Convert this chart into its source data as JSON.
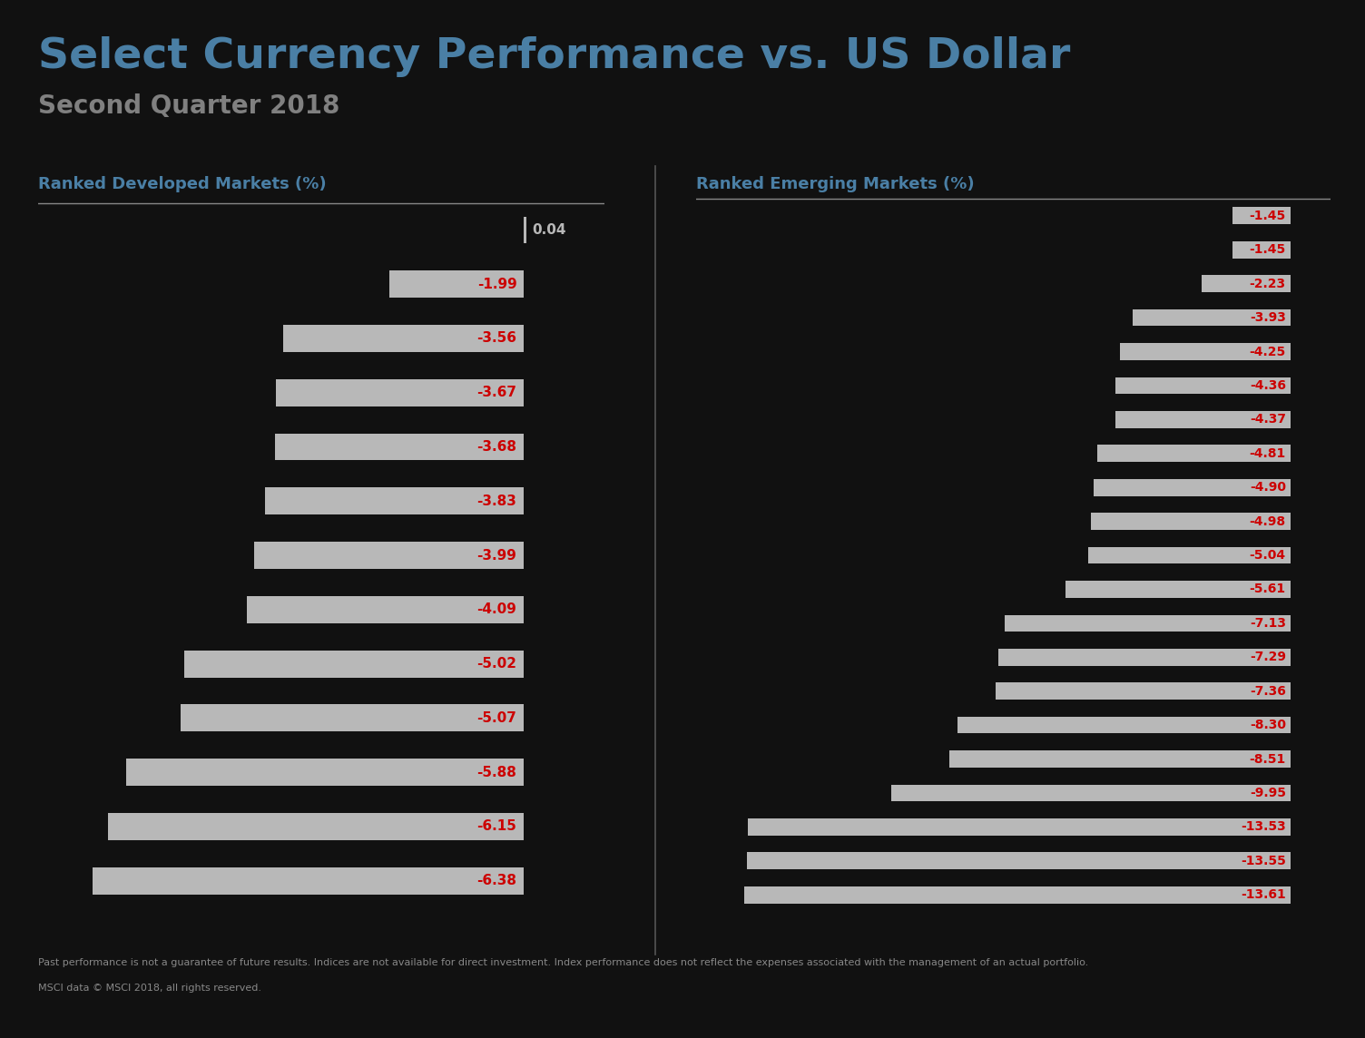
{
  "title": "Select Currency Performance vs. US Dollar",
  "subtitle": "Second Quarter 2018",
  "title_color": "#4a7fa5",
  "subtitle_color": "#808080",
  "background_color": "#111111",
  "bar_color": "#b8b8b8",
  "label_color": "#cc0000",
  "positive_label_color": "#b8b8b8",
  "developed_label": "Ranked Developed Markets (%)",
  "emerging_label": "Ranked Emerging Markets (%)",
  "developed_values": [
    0.04,
    -1.99,
    -3.56,
    -3.67,
    -3.68,
    -3.83,
    -3.99,
    -4.09,
    -5.02,
    -5.07,
    -5.88,
    -6.15,
    -6.38
  ],
  "emerging_values": [
    -1.45,
    -1.45,
    -2.23,
    -3.93,
    -4.25,
    -4.36,
    -4.37,
    -4.81,
    -4.9,
    -4.98,
    -5.04,
    -5.61,
    -7.13,
    -7.29,
    -7.36,
    -8.3,
    -8.51,
    -9.95,
    -13.53,
    -13.55,
    -13.61
  ],
  "footer_line1": "Past performance is not a guarantee of future results. Indices are not available for direct investment. Index performance does not reflect the expenses associated with the management of an actual portfolio.",
  "footer_line2": "MSCI data © MSCI 2018, all rights reserved.",
  "footer_color": "#888888",
  "separator_color": "#555555",
  "topline_color": "#888888"
}
